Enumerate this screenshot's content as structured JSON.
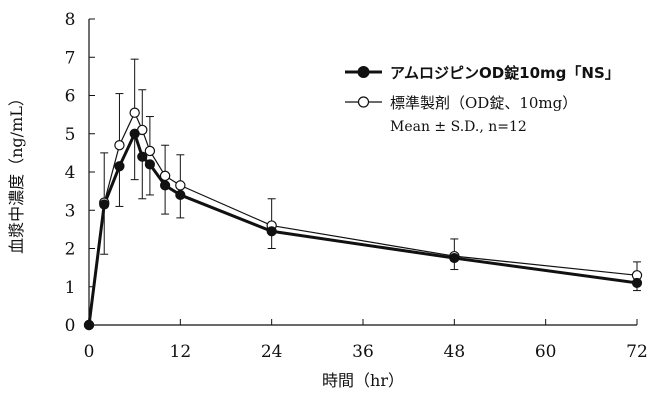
{
  "chart_data": {
    "type": "line",
    "xlabel": "時間（hr）",
    "ylabel": "血漿中濃度（ng/mL）",
    "xlim": [
      0,
      72
    ],
    "ylim": [
      0,
      8
    ],
    "xticks": [
      0,
      12,
      24,
      36,
      48,
      60,
      72
    ],
    "yticks": [
      0,
      1,
      2,
      3,
      4,
      5,
      6,
      7,
      8
    ],
    "grid": false,
    "legend_position": "top-right",
    "legend_note": "Mean ± S.D., n=12",
    "series": [
      {
        "name": "アムロジピンOD錠10mg「NS」",
        "marker": "filled-circle",
        "color": "#111111",
        "x": [
          0,
          2,
          4,
          6,
          7,
          8,
          10,
          12,
          24,
          48,
          72
        ],
        "y": [
          0,
          3.15,
          4.15,
          5.0,
          4.4,
          4.2,
          3.65,
          3.4,
          2.45,
          1.75,
          1.1
        ],
        "sd": [
          0,
          1.3,
          1.05,
          1.2,
          1.1,
          0.8,
          0.75,
          0.6,
          0.45,
          0.3,
          0.2
        ]
      },
      {
        "name": "標準製剤（OD錠、10mg）",
        "marker": "open-circle",
        "color": "#111111",
        "x": [
          0,
          2,
          4,
          6,
          7,
          8,
          10,
          12,
          24,
          48,
          72
        ],
        "y": [
          0,
          3.2,
          4.7,
          5.55,
          5.1,
          4.55,
          3.9,
          3.65,
          2.6,
          1.8,
          1.3
        ],
        "sd": [
          0,
          1.3,
          1.35,
          1.4,
          1.05,
          0.9,
          0.8,
          0.8,
          0.7,
          0.45,
          0.35
        ]
      }
    ]
  }
}
